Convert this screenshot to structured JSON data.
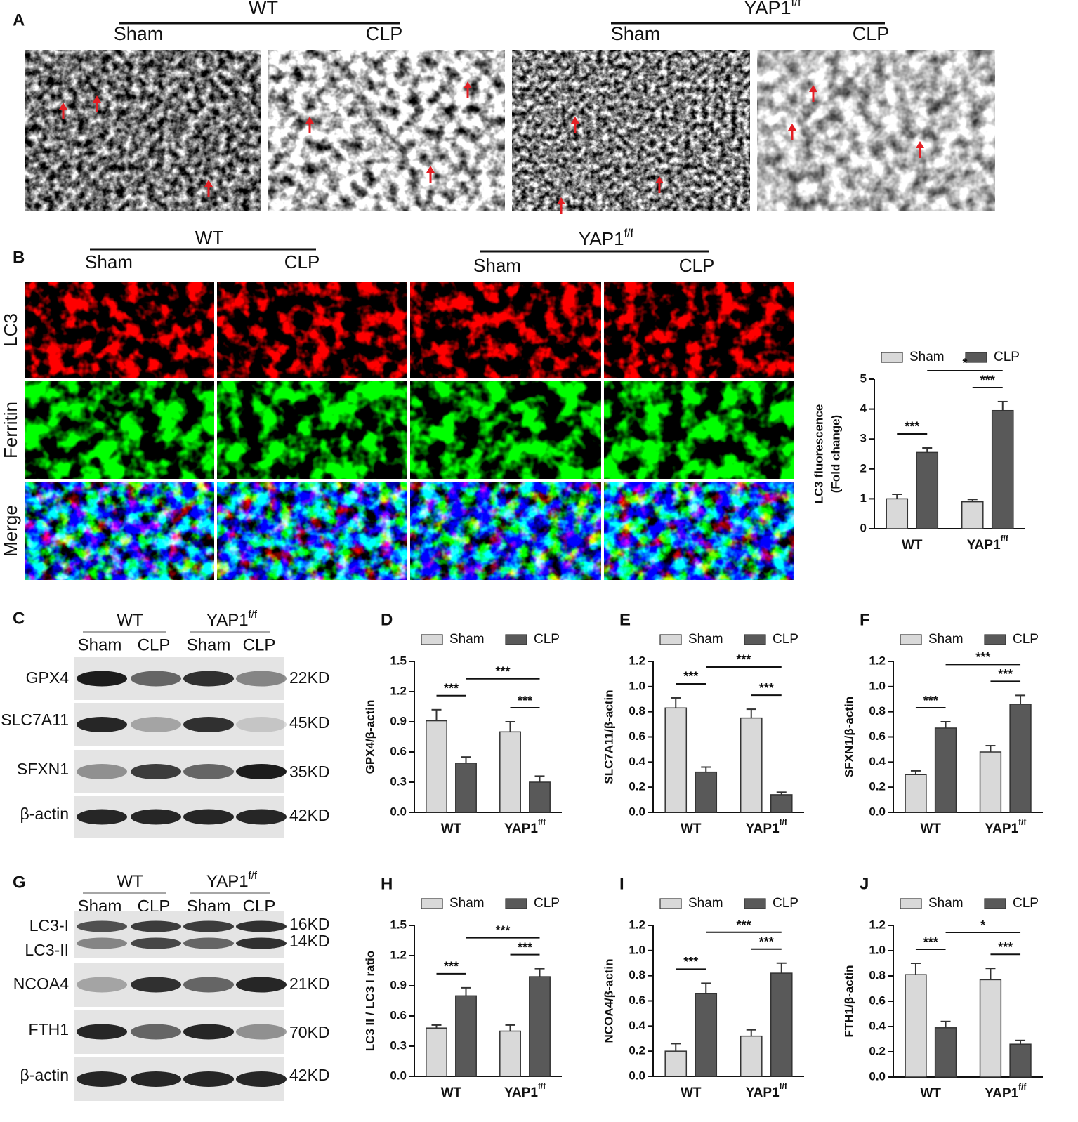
{
  "panel_a": {
    "label": "A",
    "groups": [
      {
        "name": "WT",
        "conditions": [
          "Sham",
          "CLP"
        ]
      },
      {
        "name": "YAP1",
        "sup": "f/f",
        "conditions": [
          "Sham",
          "CLP"
        ]
      }
    ]
  },
  "panel_b": {
    "label": "B",
    "groups": [
      {
        "name": "WT",
        "conditions": [
          "Sham",
          "CLP"
        ]
      },
      {
        "name": "YAP1",
        "sup": "f/f",
        "conditions": [
          "Sham",
          "CLP"
        ]
      }
    ],
    "rows": [
      {
        "text": "LC3",
        "color": "#e31e24"
      },
      {
        "text": "Ferritin",
        "color": "#2ca84a"
      },
      {
        "text": "Merge",
        "color": "#111111"
      }
    ]
  },
  "panel_c": {
    "label": "C",
    "groups": [
      {
        "name": "WT",
        "conditions": [
          "Sham",
          "CLP"
        ]
      },
      {
        "name": "YAP1",
        "sup": "f/f",
        "conditions": [
          "Sham",
          "CLP"
        ]
      }
    ],
    "blots": [
      {
        "proteins": [
          "GPX4"
        ],
        "sizes": [
          "22KD"
        ]
      },
      {
        "proteins": [
          "SLC7A11"
        ],
        "sizes": [
          "45KD"
        ]
      },
      {
        "proteins": [
          "SFXN1"
        ],
        "sizes": [
          "35KD"
        ]
      },
      {
        "proteins": [
          "β-actin"
        ],
        "sizes": [
          "42KD"
        ]
      }
    ]
  },
  "panel_g": {
    "label": "G",
    "groups": [
      {
        "name": "WT",
        "conditions": [
          "Sham",
          "CLP"
        ]
      },
      {
        "name": "YAP1",
        "sup": "f/f",
        "conditions": [
          "Sham",
          "CLP"
        ]
      }
    ],
    "blots": [
      {
        "proteins": [
          "LC3-I",
          "LC3-II"
        ],
        "sizes": [
          "16KD",
          "14KD"
        ]
      },
      {
        "proteins": [
          "NCOA4"
        ],
        "sizes": [
          "21KD"
        ]
      },
      {
        "proteins": [
          "FTH1"
        ],
        "sizes": [
          "70KD"
        ]
      },
      {
        "proteins": [
          "β-actin"
        ],
        "sizes": [
          "42KD"
        ]
      }
    ]
  },
  "chart_data": [
    {
      "type": "bar",
      "ylabel": [
        "LC3 fluorescence",
        "(Fold change)"
      ],
      "categories": [
        {
          "name": "WT"
        },
        {
          "name": "YAP1",
          "sup": "f/f"
        }
      ],
      "series": [
        {
          "name": "Sham",
          "color": "#d9d9d9",
          "values": [
            1.0,
            0.9
          ],
          "errors": [
            0.15,
            0.08
          ]
        },
        {
          "name": "CLP",
          "color": "#595959",
          "values": [
            2.55,
            3.95
          ],
          "errors": [
            0.15,
            0.3
          ]
        }
      ],
      "ylim": [
        0,
        5
      ],
      "yticks": [
        0,
        1,
        2,
        3,
        4,
        5
      ],
      "annotations": [
        "***",
        "*",
        "***"
      ]
    },
    {
      "type": "bar",
      "label": "D",
      "ylabel": [
        "GPX4/β-actin"
      ],
      "categories": [
        {
          "name": "WT"
        },
        {
          "name": "YAP1",
          "sup": "f/f"
        }
      ],
      "series": [
        {
          "name": "Sham",
          "color": "#d9d9d9",
          "values": [
            0.91,
            0.8
          ],
          "errors": [
            0.11,
            0.1
          ]
        },
        {
          "name": "CLP",
          "color": "#595959",
          "values": [
            0.49,
            0.3
          ],
          "errors": [
            0.06,
            0.06
          ]
        }
      ],
      "ylim": [
        0,
        1.5
      ],
      "yticks": [
        {
          "value": 0,
          "label": "0.0"
        },
        0.3,
        0.6,
        0.9,
        1.2,
        1.5
      ],
      "annotations": [
        "***",
        "***",
        "***"
      ]
    },
    {
      "type": "bar",
      "label": "E",
      "ylabel": [
        "SLC7A11/β-actin"
      ],
      "categories": [
        {
          "name": "WT"
        },
        {
          "name": "YAP1",
          "sup": "f/f"
        }
      ],
      "series": [
        {
          "name": "Sham",
          "color": "#d9d9d9",
          "values": [
            0.83,
            0.75
          ],
          "errors": [
            0.08,
            0.07
          ]
        },
        {
          "name": "CLP",
          "color": "#595959",
          "values": [
            0.32,
            0.14
          ],
          "errors": [
            0.04,
            0.02
          ]
        }
      ],
      "ylim": [
        0,
        1.2
      ],
      "yticks": [
        {
          "value": 0,
          "label": "0.0"
        },
        0.2,
        0.4,
        0.6,
        0.8,
        {
          "value": 1,
          "label": "1.0"
        },
        1.2
      ],
      "annotations": [
        "***",
        "***",
        "***"
      ]
    },
    {
      "type": "bar",
      "label": "F",
      "ylabel": [
        "SFXN1/β-actin"
      ],
      "categories": [
        {
          "name": "WT"
        },
        {
          "name": "YAP1",
          "sup": "f/f"
        }
      ],
      "series": [
        {
          "name": "Sham",
          "color": "#d9d9d9",
          "values": [
            0.3,
            0.48
          ],
          "errors": [
            0.03,
            0.05
          ]
        },
        {
          "name": "CLP",
          "color": "#595959",
          "values": [
            0.67,
            0.86
          ],
          "errors": [
            0.05,
            0.07
          ]
        }
      ],
      "ylim": [
        0,
        1.2
      ],
      "yticks": [
        {
          "value": 0,
          "label": "0.0"
        },
        0.2,
        0.4,
        0.6,
        0.8,
        {
          "value": 1,
          "label": "1.0"
        },
        1.2
      ],
      "annotations": [
        "***",
        "***",
        "***"
      ]
    },
    {
      "type": "bar",
      "label": "H",
      "ylabel": [
        "LC3 II / LC3 I ratio"
      ],
      "categories": [
        {
          "name": "WT"
        },
        {
          "name": "YAP1",
          "sup": "f/f"
        }
      ],
      "series": [
        {
          "name": "Sham",
          "color": "#d9d9d9",
          "values": [
            0.48,
            0.45
          ],
          "errors": [
            0.03,
            0.06
          ]
        },
        {
          "name": "CLP",
          "color": "#595959",
          "values": [
            0.8,
            0.99
          ],
          "errors": [
            0.08,
            0.08
          ]
        }
      ],
      "ylim": [
        0,
        1.5
      ],
      "yticks": [
        {
          "value": 0,
          "label": "0.0"
        },
        0.3,
        0.6,
        0.9,
        1.2,
        1.5
      ],
      "annotations": [
        "***",
        "***",
        "***"
      ]
    },
    {
      "type": "bar",
      "label": "I",
      "ylabel": [
        "NCOA4/β-actin"
      ],
      "categories": [
        {
          "name": "WT"
        },
        {
          "name": "YAP1",
          "sup": "f/f"
        }
      ],
      "series": [
        {
          "name": "Sham",
          "color": "#d9d9d9",
          "values": [
            0.2,
            0.32
          ],
          "errors": [
            0.06,
            0.05
          ]
        },
        {
          "name": "CLP",
          "color": "#595959",
          "values": [
            0.66,
            0.82
          ],
          "errors": [
            0.08,
            0.08
          ]
        }
      ],
      "ylim": [
        0,
        1.2
      ],
      "yticks": [
        {
          "value": 0,
          "label": "0.0"
        },
        0.2,
        0.4,
        0.6,
        0.8,
        {
          "value": 1,
          "label": "1.0"
        },
        1.2
      ],
      "annotations": [
        "***",
        "***",
        "***"
      ]
    },
    {
      "type": "bar",
      "label": "J",
      "ylabel": [
        "FTH1/β-actin"
      ],
      "categories": [
        {
          "name": "WT"
        },
        {
          "name": "YAP1",
          "sup": "f/f"
        }
      ],
      "series": [
        {
          "name": "Sham",
          "color": "#d9d9d9",
          "values": [
            0.81,
            0.77
          ],
          "errors": [
            0.09,
            0.09
          ]
        },
        {
          "name": "CLP",
          "color": "#595959",
          "values": [
            0.39,
            0.26
          ],
          "errors": [
            0.05,
            0.03
          ]
        }
      ],
      "ylim": [
        0,
        1.2
      ],
      "yticks": [
        {
          "value": 0,
          "label": "0.0"
        },
        0.2,
        0.4,
        0.6,
        0.8,
        {
          "value": 1,
          "label": "1.0"
        },
        1.2
      ],
      "annotations": [
        "***",
        "*",
        "***"
      ]
    }
  ]
}
